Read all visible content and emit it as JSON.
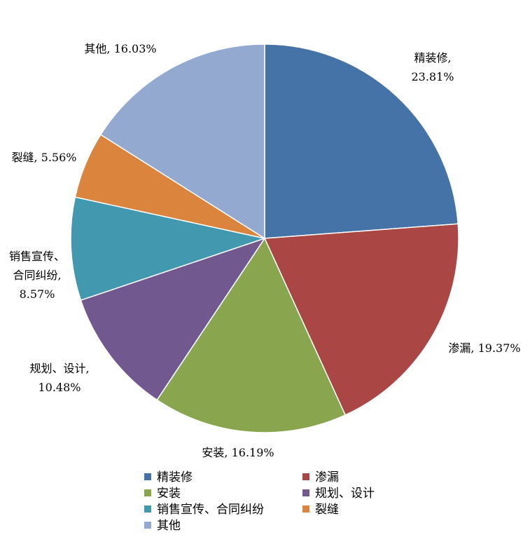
{
  "chart_data": {
    "type": "pie",
    "title": "",
    "legend_position": "bottom",
    "slices": [
      {
        "name": "精装修",
        "value": 23.81,
        "color": "#4572A7",
        "label_lines": [
          "精装修,",
          "23.81%"
        ]
      },
      {
        "name": "渗漏",
        "value": 19.37,
        "color": "#AA4643",
        "label_lines": [
          "渗漏, 19.37%"
        ]
      },
      {
        "name": "安装",
        "value": 16.19,
        "color": "#89A54E",
        "label_lines": [
          "安装, 16.19%"
        ]
      },
      {
        "name": "规划、设计",
        "value": 10.48,
        "color": "#71588F",
        "label_lines": [
          "规划、设计,",
          "10.48%"
        ]
      },
      {
        "name": "销售宣传、合同纠纷",
        "value": 8.57,
        "color": "#4198AF",
        "label_lines": [
          "销售宣传、",
          "合同纠纷,",
          "8.57%"
        ]
      },
      {
        "name": "裂缝",
        "value": 5.56,
        "color": "#DB843D",
        "label_lines": [
          "裂缝, 5.56%"
        ]
      },
      {
        "name": "其他",
        "value": 16.03,
        "color": "#93A9CF",
        "label_lines": [
          "其他, 16.03%"
        ]
      }
    ]
  }
}
